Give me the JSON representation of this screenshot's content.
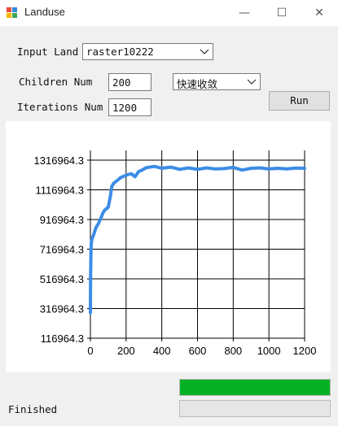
{
  "window": {
    "title": "Landuse",
    "minimize_glyph": "—",
    "maximize_glyph": "☐",
    "close_glyph": "✕"
  },
  "form": {
    "input_land_label": "Input Land",
    "input_land_value": "raster10222",
    "children_num_label": "Children Num",
    "children_num_value": "200",
    "mode_value": "快速收敛",
    "iterations_num_label": "Iterations Num",
    "iterations_num_value": "1200",
    "run_label": "Run"
  },
  "chart_data": {
    "type": "line",
    "x_ticks": [
      "0",
      "200",
      "400",
      "600",
      "800",
      "1000",
      "1200"
    ],
    "y_ticks": [
      "116964.3",
      "316964.3",
      "516964.3",
      "716964.3",
      "916964.3",
      "1116964.3",
      "1316964.3"
    ],
    "xlim": [
      0,
      1200
    ],
    "ylim": [
      116964.3,
      1316964.3
    ],
    "grid": true,
    "line_color": "#3c8ce6",
    "series": [
      {
        "x": [
          0,
          1,
          3,
          5,
          10,
          20,
          30,
          45,
          60,
          70,
          80,
          90,
          100,
          110,
          120,
          130,
          150,
          170,
          190,
          210,
          230,
          250,
          270,
          290,
          310,
          330,
          360,
          400,
          450,
          500,
          550,
          600,
          650,
          700,
          750,
          800,
          850,
          900,
          950,
          1000,
          1050,
          1100,
          1150,
          1200
        ],
        "y": [
          290000,
          520000,
          700000,
          760000,
          790000,
          820000,
          860000,
          890000,
          930000,
          960000,
          980000,
          990000,
          1000000,
          1060000,
          1140000,
          1160000,
          1180000,
          1200000,
          1210000,
          1220000,
          1225000,
          1205000,
          1240000,
          1250000,
          1265000,
          1270000,
          1275000,
          1262000,
          1270000,
          1255000,
          1265000,
          1255000,
          1265000,
          1258000,
          1260000,
          1268000,
          1250000,
          1262000,
          1265000,
          1258000,
          1262000,
          1258000,
          1264000,
          1262000
        ]
      }
    ]
  },
  "progress": {
    "primary_fraction": 1.0,
    "secondary_fraction": 0.0,
    "primary_color": "#06b025"
  },
  "status": {
    "text": "Finished"
  }
}
